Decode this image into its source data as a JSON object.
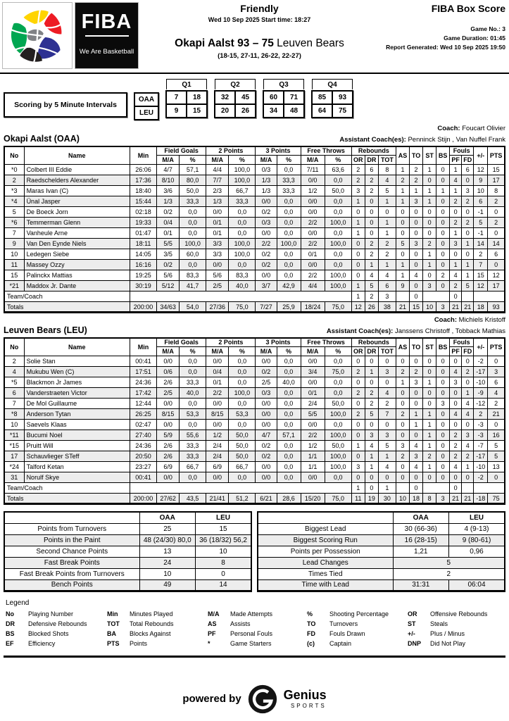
{
  "header": {
    "competition": "Friendly",
    "datetime": "Wed 10 Sep 2025 Start time: 18:27",
    "score_main": "Okapi Aalst 93 – 75",
    "score_rest": " Leuven Bears",
    "quarter_scores": "(18-15, 27-11, 26-22, 22-27)",
    "report_title": "FIBA Box Score",
    "game_no": "Game No.: 3",
    "game_duration": "Game Duration: 01:45",
    "report_generated": "Report Generated: Wed 10 Sep 2025 19:50",
    "logo": {
      "word": "FIBA",
      "tagline": "We Are Basketball"
    }
  },
  "intervals": {
    "label": "Scoring by 5 Minute Intervals",
    "quarter_headers": [
      "Q1",
      "Q2",
      "Q3",
      "Q4"
    ],
    "rows": [
      {
        "team": "OAA",
        "values": [
          7,
          18,
          32,
          45,
          60,
          71,
          85,
          93
        ]
      },
      {
        "team": "LEU",
        "values": [
          9,
          15,
          20,
          26,
          34,
          48,
          64,
          75
        ]
      }
    ]
  },
  "stat_table": {
    "no": "No",
    "name": "Name",
    "min": "Min",
    "fg": "Field Goals",
    "p2": "2 Points",
    "p3": "3 Points",
    "ft": "Free Throws",
    "reb": "Rebounds",
    "ma": "M/A",
    "pct": "%",
    "or": "OR",
    "dr": "DR",
    "tot": "TOT",
    "as": "AS",
    "to": "TO",
    "st": "ST",
    "bs": "BS",
    "fouls": "Fouls",
    "pf": "PF",
    "fd": "FD",
    "pm": "+/-",
    "pts": "PTS",
    "team_coach": "Team/Coach",
    "totals": "Totals"
  },
  "teams": [
    {
      "name": "Okapi Aalst (OAA)",
      "coach_label": "Coach:",
      "coach": "Foucart Olivier",
      "assistant_label": "Assistant Coach(es):",
      "assistants": "Penninck Stijn , Van Nuffel Frank",
      "players": [
        {
          "no": "*0",
          "name": "Colbert III Eddie",
          "min": "26:06",
          "fg": "4/7",
          "fgp": "57,1",
          "p2": "4/4",
          "p2p": "100,0",
          "p3": "0/3",
          "p3p": "0,0",
          "ft": "7/11",
          "ftp": "63,6",
          "or": "2",
          "dr": "6",
          "tot": "8",
          "as": "1",
          "to": "2",
          "st": "1",
          "bs": "0",
          "pf": "1",
          "fd": "6",
          "pm": "12",
          "pts": "15"
        },
        {
          "no": "2",
          "name": "Raedschelders Alexander",
          "min": "17:36",
          "fg": "8/10",
          "fgp": "80,0",
          "p2": "7/7",
          "p2p": "100,0",
          "p3": "1/3",
          "p3p": "33,3",
          "ft": "0/0",
          "ftp": "0,0",
          "or": "2",
          "dr": "2",
          "tot": "4",
          "as": "2",
          "to": "2",
          "st": "0",
          "bs": "0",
          "pf": "4",
          "fd": "0",
          "pm": "9",
          "pts": "17"
        },
        {
          "no": "*3",
          "name": "Maras Ivan (C)",
          "min": "18:40",
          "fg": "3/6",
          "fgp": "50,0",
          "p2": "2/3",
          "p2p": "66,7",
          "p3": "1/3",
          "p3p": "33,3",
          "ft": "1/2",
          "ftp": "50,0",
          "or": "3",
          "dr": "2",
          "tot": "5",
          "as": "1",
          "to": "1",
          "st": "1",
          "bs": "1",
          "pf": "1",
          "fd": "3",
          "pm": "10",
          "pts": "8"
        },
        {
          "no": "*4",
          "name": "Ünal Jasper",
          "min": "15:44",
          "fg": "1/3",
          "fgp": "33,3",
          "p2": "1/3",
          "p2p": "33,3",
          "p3": "0/0",
          "p3p": "0,0",
          "ft": "0/0",
          "ftp": "0,0",
          "or": "1",
          "dr": "0",
          "tot": "1",
          "as": "1",
          "to": "3",
          "st": "1",
          "bs": "0",
          "pf": "2",
          "fd": "2",
          "pm": "6",
          "pts": "2"
        },
        {
          "no": "5",
          "name": "De Boeck Jorn",
          "min": "02:18",
          "fg": "0/2",
          "fgp": "0,0",
          "p2": "0/0",
          "p2p": "0,0",
          "p3": "0/2",
          "p3p": "0,0",
          "ft": "0/0",
          "ftp": "0,0",
          "or": "0",
          "dr": "0",
          "tot": "0",
          "as": "0",
          "to": "0",
          "st": "0",
          "bs": "0",
          "pf": "0",
          "fd": "0",
          "pm": "-1",
          "pts": "0"
        },
        {
          "no": "*6",
          "name": "Temmerman Glenn",
          "min": "19:33",
          "fg": "0/4",
          "fgp": "0,0",
          "p2": "0/1",
          "p2p": "0,0",
          "p3": "0/3",
          "p3p": "0,0",
          "ft": "2/2",
          "ftp": "100,0",
          "or": "1",
          "dr": "0",
          "tot": "1",
          "as": "0",
          "to": "0",
          "st": "0",
          "bs": "0",
          "pf": "2",
          "fd": "2",
          "pm": "5",
          "pts": "2"
        },
        {
          "no": "7",
          "name": "Vanheule Arne",
          "min": "01:47",
          "fg": "0/1",
          "fgp": "0,0",
          "p2": "0/1",
          "p2p": "0,0",
          "p3": "0/0",
          "p3p": "0,0",
          "ft": "0/0",
          "ftp": "0,0",
          "or": "1",
          "dr": "0",
          "tot": "1",
          "as": "0",
          "to": "0",
          "st": "0",
          "bs": "0",
          "pf": "1",
          "fd": "0",
          "pm": "-1",
          "pts": "0"
        },
        {
          "no": "9",
          "name": "Van Den Eynde Niels",
          "min": "18:11",
          "fg": "5/5",
          "fgp": "100,0",
          "p2": "3/3",
          "p2p": "100,0",
          "p3": "2/2",
          "p3p": "100,0",
          "ft": "2/2",
          "ftp": "100,0",
          "or": "0",
          "dr": "2",
          "tot": "2",
          "as": "5",
          "to": "3",
          "st": "2",
          "bs": "0",
          "pf": "3",
          "fd": "1",
          "pm": "14",
          "pts": "14"
        },
        {
          "no": "10",
          "name": "Ledegen Siebe",
          "min": "14:05",
          "fg": "3/5",
          "fgp": "60,0",
          "p2": "3/3",
          "p2p": "100,0",
          "p3": "0/2",
          "p3p": "0,0",
          "ft": "0/1",
          "ftp": "0,0",
          "or": "0",
          "dr": "2",
          "tot": "2",
          "as": "0",
          "to": "0",
          "st": "1",
          "bs": "0",
          "pf": "0",
          "fd": "0",
          "pm": "2",
          "pts": "6"
        },
        {
          "no": "11",
          "name": "Massey Ozzy",
          "min": "16:16",
          "fg": "0/2",
          "fgp": "0,0",
          "p2": "0/0",
          "p2p": "0,0",
          "p3": "0/2",
          "p3p": "0,0",
          "ft": "0/0",
          "ftp": "0,0",
          "or": "0",
          "dr": "1",
          "tot": "1",
          "as": "1",
          "to": "0",
          "st": "1",
          "bs": "0",
          "pf": "1",
          "fd": "1",
          "pm": "7",
          "pts": "0"
        },
        {
          "no": "15",
          "name": "Palinckx Mattias",
          "min": "19:25",
          "fg": "5/6",
          "fgp": "83,3",
          "p2": "5/6",
          "p2p": "83,3",
          "p3": "0/0",
          "p3p": "0,0",
          "ft": "2/2",
          "ftp": "100,0",
          "or": "0",
          "dr": "4",
          "tot": "4",
          "as": "1",
          "to": "4",
          "st": "0",
          "bs": "2",
          "pf": "4",
          "fd": "1",
          "pm": "15",
          "pts": "12"
        },
        {
          "no": "*21",
          "name": "Maddox Jr. Dante",
          "min": "30:19",
          "fg": "5/12",
          "fgp": "41,7",
          "p2": "2/5",
          "p2p": "40,0",
          "p3": "3/7",
          "p3p": "42,9",
          "ft": "4/4",
          "ftp": "100,0",
          "or": "1",
          "dr": "5",
          "tot": "6",
          "as": "9",
          "to": "0",
          "st": "3",
          "bs": "0",
          "pf": "2",
          "fd": "5",
          "pm": "12",
          "pts": "17"
        }
      ],
      "team_coach": {
        "or": "1",
        "dr": "2",
        "tot": "3",
        "to": "0",
        "pf": "0"
      },
      "totals": {
        "min": "200:00",
        "fg": "34/63",
        "fgp": "54,0",
        "p2": "27/36",
        "p2p": "75,0",
        "p3": "7/27",
        "p3p": "25,9",
        "ft": "18/24",
        "ftp": "75,0",
        "or": "12",
        "dr": "26",
        "tot": "38",
        "as": "21",
        "to": "15",
        "st": "10",
        "bs": "3",
        "pf": "21",
        "fd": "21",
        "pm": "18",
        "pts": "93"
      }
    },
    {
      "name": "Leuven Bears (LEU)",
      "coach_label": "Coach:",
      "coach": "Michiels Kristoff",
      "assistant_label": "Assistant Coach(es):",
      "assistants": "Janssens Christoff , Tobback Mathias",
      "players": [
        {
          "no": "2",
          "name": "Solie Stan",
          "min": "00:41",
          "fg": "0/0",
          "fgp": "0,0",
          "p2": "0/0",
          "p2p": "0,0",
          "p3": "0/0",
          "p3p": "0,0",
          "ft": "0/0",
          "ftp": "0,0",
          "or": "0",
          "dr": "0",
          "tot": "0",
          "as": "0",
          "to": "0",
          "st": "0",
          "bs": "0",
          "pf": "0",
          "fd": "0",
          "pm": "-2",
          "pts": "0"
        },
        {
          "no": "4",
          "name": "Mukubu Wen (C)",
          "min": "17:51",
          "fg": "0/6",
          "fgp": "0,0",
          "p2": "0/4",
          "p2p": "0,0",
          "p3": "0/2",
          "p3p": "0,0",
          "ft": "3/4",
          "ftp": "75,0",
          "or": "2",
          "dr": "1",
          "tot": "3",
          "as": "2",
          "to": "2",
          "st": "0",
          "bs": "0",
          "pf": "4",
          "fd": "2",
          "pm": "-17",
          "pts": "3"
        },
        {
          "no": "*5",
          "name": "Blackmon Jr James",
          "min": "24:36",
          "fg": "2/6",
          "fgp": "33,3",
          "p2": "0/1",
          "p2p": "0,0",
          "p3": "2/5",
          "p3p": "40,0",
          "ft": "0/0",
          "ftp": "0,0",
          "or": "0",
          "dr": "0",
          "tot": "0",
          "as": "1",
          "to": "3",
          "st": "1",
          "bs": "0",
          "pf": "3",
          "fd": "0",
          "pm": "-10",
          "pts": "6"
        },
        {
          "no": "6",
          "name": "Vanderstraeten Victor",
          "min": "17:42",
          "fg": "2/5",
          "fgp": "40,0",
          "p2": "2/2",
          "p2p": "100,0",
          "p3": "0/3",
          "p3p": "0,0",
          "ft": "0/1",
          "ftp": "0,0",
          "or": "2",
          "dr": "2",
          "tot": "4",
          "as": "0",
          "to": "0",
          "st": "0",
          "bs": "0",
          "pf": "0",
          "fd": "1",
          "pm": "-9",
          "pts": "4"
        },
        {
          "no": "7",
          "name": "De Mol Guillaume",
          "min": "12:44",
          "fg": "0/0",
          "fgp": "0,0",
          "p2": "0/0",
          "p2p": "0,0",
          "p3": "0/0",
          "p3p": "0,0",
          "ft": "2/4",
          "ftp": "50,0",
          "or": "0",
          "dr": "2",
          "tot": "2",
          "as": "0",
          "to": "0",
          "st": "0",
          "bs": "3",
          "pf": "0",
          "fd": "4",
          "pm": "-12",
          "pts": "2"
        },
        {
          "no": "*8",
          "name": "Anderson Tytan",
          "min": "26:25",
          "fg": "8/15",
          "fgp": "53,3",
          "p2": "8/15",
          "p2p": "53,3",
          "p3": "0/0",
          "p3p": "0,0",
          "ft": "5/5",
          "ftp": "100,0",
          "or": "2",
          "dr": "5",
          "tot": "7",
          "as": "2",
          "to": "1",
          "st": "1",
          "bs": "0",
          "pf": "4",
          "fd": "4",
          "pm": "2",
          "pts": "21"
        },
        {
          "no": "10",
          "name": "Saevels Klaas",
          "min": "02:47",
          "fg": "0/0",
          "fgp": "0,0",
          "p2": "0/0",
          "p2p": "0,0",
          "p3": "0/0",
          "p3p": "0,0",
          "ft": "0/0",
          "ftp": "0,0",
          "or": "0",
          "dr": "0",
          "tot": "0",
          "as": "0",
          "to": "1",
          "st": "1",
          "bs": "0",
          "pf": "0",
          "fd": "0",
          "pm": "-3",
          "pts": "0"
        },
        {
          "no": "*11",
          "name": "Bucumi Noel",
          "min": "27:40",
          "fg": "5/9",
          "fgp": "55,6",
          "p2": "1/2",
          "p2p": "50,0",
          "p3": "4/7",
          "p3p": "57,1",
          "ft": "2/2",
          "ftp": "100,0",
          "or": "0",
          "dr": "3",
          "tot": "3",
          "as": "0",
          "to": "0",
          "st": "1",
          "bs": "0",
          "pf": "2",
          "fd": "3",
          "pm": "-3",
          "pts": "16"
        },
        {
          "no": "*15",
          "name": "Pruitt Will",
          "min": "24:36",
          "fg": "2/6",
          "fgp": "33,3",
          "p2": "2/4",
          "p2p": "50,0",
          "p3": "0/2",
          "p3p": "0,0",
          "ft": "1/2",
          "ftp": "50,0",
          "or": "1",
          "dr": "4",
          "tot": "5",
          "as": "3",
          "to": "4",
          "st": "1",
          "bs": "0",
          "pf": "2",
          "fd": "4",
          "pm": "-7",
          "pts": "5"
        },
        {
          "no": "17",
          "name": "Schauvlieger STeff",
          "min": "20:50",
          "fg": "2/6",
          "fgp": "33,3",
          "p2": "2/4",
          "p2p": "50,0",
          "p3": "0/2",
          "p3p": "0,0",
          "ft": "1/1",
          "ftp": "100,0",
          "or": "0",
          "dr": "1",
          "tot": "1",
          "as": "2",
          "to": "3",
          "st": "2",
          "bs": "0",
          "pf": "2",
          "fd": "2",
          "pm": "-17",
          "pts": "5"
        },
        {
          "no": "*24",
          "name": "Talford Ketan",
          "min": "23:27",
          "fg": "6/9",
          "fgp": "66,7",
          "p2": "6/9",
          "p2p": "66,7",
          "p3": "0/0",
          "p3p": "0,0",
          "ft": "1/1",
          "ftp": "100,0",
          "or": "3",
          "dr": "1",
          "tot": "4",
          "as": "0",
          "to": "4",
          "st": "1",
          "bs": "0",
          "pf": "4",
          "fd": "1",
          "pm": "-10",
          "pts": "13"
        },
        {
          "no": "31",
          "name": "Norulf Skye",
          "min": "00:41",
          "fg": "0/0",
          "fgp": "0,0",
          "p2": "0/0",
          "p2p": "0,0",
          "p3": "0/0",
          "p3p": "0,0",
          "ft": "0/0",
          "ftp": "0,0",
          "or": "0",
          "dr": "0",
          "tot": "0",
          "as": "0",
          "to": "0",
          "st": "0",
          "bs": "0",
          "pf": "0",
          "fd": "0",
          "pm": "-2",
          "pts": "0"
        }
      ],
      "team_coach": {
        "or": "1",
        "dr": "0",
        "tot": "1",
        "to": "0",
        "pf": "0"
      },
      "totals": {
        "min": "200:00",
        "fg": "27/62",
        "fgp": "43,5",
        "p2": "21/41",
        "p2p": "51,2",
        "p3": "6/21",
        "p3p": "28,6",
        "ft": "15/20",
        "ftp": "75,0",
        "or": "11",
        "dr": "19",
        "tot": "30",
        "as": "10",
        "to": "18",
        "st": "8",
        "bs": "3",
        "pf": "21",
        "fd": "21",
        "pm": "-18",
        "pts": "75"
      }
    }
  ],
  "summaries": [
    {
      "col1": "OAA",
      "col2": "LEU",
      "rows": [
        {
          "label": "Points from Turnovers",
          "oaa": "25",
          "leu": "15"
        },
        {
          "label": "Points in the Paint",
          "oaa": "48 (24/30) 80,0",
          "leu": "36 (18/32) 56,2"
        },
        {
          "label": "Second Chance Points",
          "oaa": "13",
          "leu": "10"
        },
        {
          "label": "Fast Break Points",
          "oaa": "24",
          "leu": "8"
        },
        {
          "label": "Fast Break Points from Turnovers",
          "oaa": "10",
          "leu": "0"
        },
        {
          "label": "Bench Points",
          "oaa": "49",
          "leu": "14"
        }
      ]
    },
    {
      "col1": "OAA",
      "col2": "LEU",
      "rows": [
        {
          "label": "Biggest Lead",
          "oaa": "30 (66-36)",
          "leu": "4 (9-13)"
        },
        {
          "label": "Biggest Scoring Run",
          "oaa": "16 (28-15)",
          "leu": "9 (80-61)"
        },
        {
          "label": "Points per Possession",
          "oaa": "1,21",
          "leu": "0,96"
        },
        {
          "label": "Lead Changes",
          "span": "5"
        },
        {
          "label": "Times Tied",
          "span": "2"
        },
        {
          "label": "Time with Lead",
          "oaa": "31:31",
          "leu": "06:04"
        }
      ]
    }
  ],
  "legend": {
    "title": "Legend",
    "items": [
      {
        "a": "No",
        "d": "Playing Number"
      },
      {
        "a": "Min",
        "d": "Minutes Played"
      },
      {
        "a": "M/A",
        "d": "Made Attempts"
      },
      {
        "a": "%",
        "d": "Shooting Percentage"
      },
      {
        "a": "OR",
        "d": "Offensive Rebounds"
      },
      {
        "a": "DR",
        "d": "Defensive Rebounds"
      },
      {
        "a": "TOT",
        "d": "Total Rebounds"
      },
      {
        "a": "AS",
        "d": "Assists"
      },
      {
        "a": "TO",
        "d": "Turnovers"
      },
      {
        "a": "ST",
        "d": "Steals"
      },
      {
        "a": "BS",
        "d": "Blocked Shots"
      },
      {
        "a": "BA",
        "d": "Blocks Against"
      },
      {
        "a": "PF",
        "d": "Personal Fouls"
      },
      {
        "a": "FD",
        "d": "Fouls Drawn"
      },
      {
        "a": "+/-",
        "d": "Plus / Minus"
      },
      {
        "a": "EF",
        "d": "Efficiency"
      },
      {
        "a": "PTS",
        "d": "Points"
      },
      {
        "a": "*",
        "d": "Game Starters"
      },
      {
        "a": "(c)",
        "d": "Captain"
      },
      {
        "a": "DNP",
        "d": "Did Not Play"
      }
    ]
  },
  "footer": {
    "powered_by": "powered by",
    "brand": "Genius",
    "brand_sub": "SPORTS"
  }
}
